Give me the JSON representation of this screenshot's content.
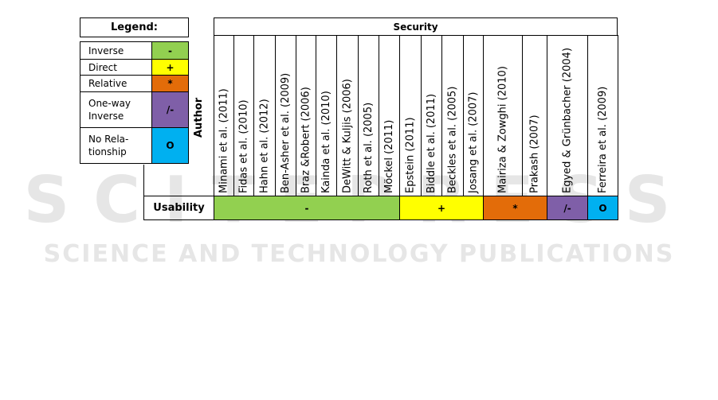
{
  "legend": {
    "title": "Legend:",
    "items": [
      {
        "label": "Inverse",
        "symbol": "-",
        "color": "#92d050"
      },
      {
        "label": "Direct",
        "symbol": "+",
        "color": "#ffff00"
      },
      {
        "label": "Relative",
        "symbol": "*",
        "color": "#e36c09"
      },
      {
        "label": "One-way Inverse",
        "symbol": "/-",
        "color": "#7f5fa8"
      },
      {
        "label": "No Rela- tionship",
        "symbol": "O",
        "color": "#00b0f0"
      }
    ]
  },
  "table": {
    "header": "Security",
    "row_header": "Author",
    "columns": [
      "Minami et al. (2011)",
      "Fidas et al. (2010)",
      "Hahn et al. (2012)",
      "Ben-Asher et al. (2009)",
      "Braz &Robert (2006)",
      "Kainda et al. (2010)",
      "DeWitt & Kuljis (2006)",
      "Roth et al. (2005)",
      "Möckel (2011)",
      "Epstein (2011)",
      "Biddle et al. (2011)",
      "Beckles et al. (2005)",
      "Josang et al. (2007)",
      "Mairiza & Zowghi (2010)",
      "Prakash (2007)",
      "Egyed & Grünbacher (2004)",
      "Ferreira et al. (2009)"
    ],
    "row": {
      "label": "Usability",
      "groups": [
        {
          "symbol": "-",
          "span": 9,
          "color": "#92d050"
        },
        {
          "symbol": "+",
          "span": 4,
          "color": "#ffff00"
        },
        {
          "symbol": "*",
          "span": 2,
          "color": "#e36c09"
        },
        {
          "symbol": "/-",
          "span": 1,
          "color": "#7f5fa8"
        },
        {
          "symbol": "O",
          "span": 1,
          "color": "#00b0f0"
        }
      ]
    }
  },
  "watermark": {
    "logo": "SCITEPRESS",
    "tagline": "SCIENCE AND TECHNOLOGY PUBLICATIONS"
  }
}
